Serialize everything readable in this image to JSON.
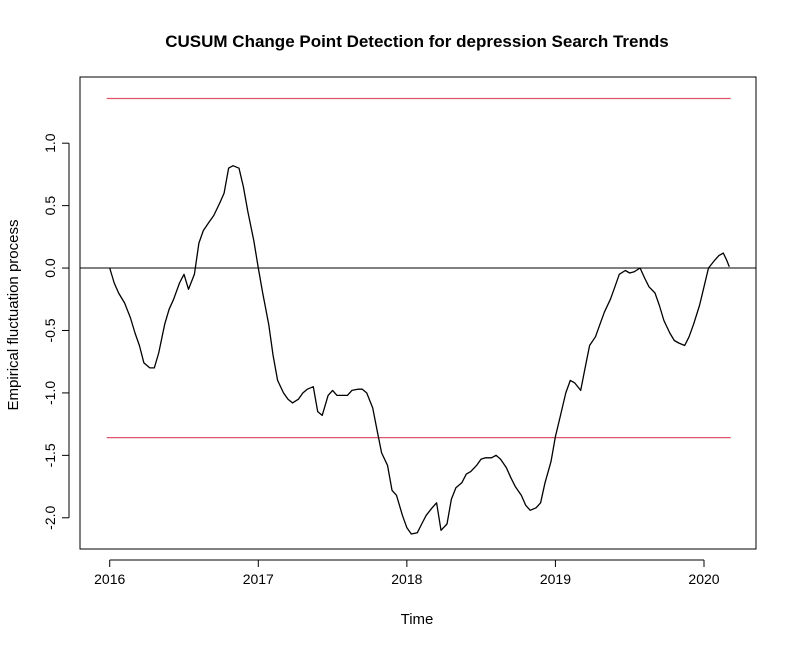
{
  "chart_data": {
    "type": "line",
    "title": "CUSUM Change Point Detection for depression Search Trends",
    "xlabel": "Time",
    "ylabel": "Empirical fluctuation process",
    "xlim": [
      2015.8,
      2020.35
    ],
    "ylim": [
      -2.25,
      1.53
    ],
    "x_ticks": [
      2016,
      2017,
      2018,
      2019,
      2020
    ],
    "x_tick_labels": [
      "2016",
      "2017",
      "2018",
      "2019",
      "2020"
    ],
    "y_ticks": [
      -2.0,
      -1.5,
      -1.0,
      -0.5,
      0.0,
      0.5,
      1.0
    ],
    "y_tick_labels": [
      "-2.0",
      "-1.5",
      "-1.0",
      "-0.5",
      "0.0",
      "0.5",
      "1.0"
    ],
    "grid": false,
    "boundaries": {
      "upper": 1.358,
      "lower": -1.358,
      "color": "#DF536B",
      "x_range": [
        2015.98,
        2020.18
      ]
    },
    "zero_line": {
      "y": 0.0,
      "color": "#000000"
    },
    "series": [
      {
        "color": "#000000",
        "x": [
          2016.0,
          2016.03,
          2016.06,
          2016.1,
          2016.14,
          2016.17,
          2016.2,
          2016.23,
          2016.27,
          2016.3,
          2016.33,
          2016.37,
          2016.4,
          2016.43,
          2016.47,
          2016.5,
          2016.53,
          2016.57,
          2016.6,
          2016.63,
          2016.67,
          2016.7,
          2016.74,
          2016.77,
          2016.8,
          2016.83,
          2016.87,
          2016.9,
          2016.93,
          2016.97,
          2017.0,
          2017.03,
          2017.07,
          2017.1,
          2017.13,
          2017.17,
          2017.2,
          2017.23,
          2017.27,
          2017.3,
          2017.33,
          2017.37,
          2017.4,
          2017.43,
          2017.47,
          2017.5,
          2017.53,
          2017.57,
          2017.6,
          2017.63,
          2017.67,
          2017.7,
          2017.73,
          2017.77,
          2017.8,
          2017.83,
          2017.87,
          2017.9,
          2017.93,
          2017.97,
          2018.0,
          2018.03,
          2018.07,
          2018.1,
          2018.13,
          2018.17,
          2018.2,
          2018.23,
          2018.27,
          2018.3,
          2018.33,
          2018.37,
          2018.4,
          2018.43,
          2018.47,
          2018.5,
          2018.53,
          2018.57,
          2018.6,
          2018.63,
          2018.67,
          2018.7,
          2018.73,
          2018.77,
          2018.8,
          2018.83,
          2018.87,
          2018.9,
          2018.93,
          2018.97,
          2019.0,
          2019.03,
          2019.07,
          2019.1,
          2019.13,
          2019.17,
          2019.2,
          2019.23,
          2019.27,
          2019.3,
          2019.33,
          2019.37,
          2019.4,
          2019.43,
          2019.47,
          2019.5,
          2019.53,
          2019.57,
          2019.6,
          2019.63,
          2019.67,
          2019.7,
          2019.73,
          2019.77,
          2019.8,
          2019.83,
          2019.87,
          2019.9,
          2019.93,
          2019.97,
          2020.0,
          2020.03,
          2020.07,
          2020.1,
          2020.13,
          2020.15,
          2020.17
        ],
        "y": [
          0.0,
          -0.12,
          -0.2,
          -0.28,
          -0.4,
          -0.52,
          -0.62,
          -0.76,
          -0.8,
          -0.8,
          -0.68,
          -0.45,
          -0.33,
          -0.25,
          -0.12,
          -0.05,
          -0.17,
          -0.05,
          0.2,
          0.3,
          0.37,
          0.42,
          0.52,
          0.6,
          0.8,
          0.82,
          0.8,
          0.65,
          0.45,
          0.22,
          0.0,
          -0.2,
          -0.45,
          -0.7,
          -0.9,
          -1.0,
          -1.05,
          -1.08,
          -1.05,
          -1.0,
          -0.97,
          -0.95,
          -1.15,
          -1.18,
          -1.02,
          -0.98,
          -1.02,
          -1.02,
          -1.02,
          -0.98,
          -0.97,
          -0.97,
          -1.0,
          -1.12,
          -1.3,
          -1.48,
          -1.58,
          -1.78,
          -1.82,
          -1.98,
          -2.08,
          -2.13,
          -2.12,
          -2.05,
          -1.98,
          -1.92,
          -1.88,
          -2.1,
          -2.05,
          -1.85,
          -1.76,
          -1.72,
          -1.65,
          -1.63,
          -1.58,
          -1.53,
          -1.52,
          -1.52,
          -1.5,
          -1.53,
          -1.6,
          -1.68,
          -1.75,
          -1.82,
          -1.9,
          -1.94,
          -1.92,
          -1.88,
          -1.72,
          -1.55,
          -1.35,
          -1.2,
          -1.0,
          -0.9,
          -0.92,
          -0.98,
          -0.8,
          -0.62,
          -0.55,
          -0.45,
          -0.35,
          -0.25,
          -0.15,
          -0.05,
          -0.02,
          -0.04,
          -0.03,
          0.0,
          -0.08,
          -0.15,
          -0.2,
          -0.3,
          -0.42,
          -0.52,
          -0.58,
          -0.6,
          -0.62,
          -0.55,
          -0.45,
          -0.3,
          -0.15,
          0.0,
          0.06,
          0.1,
          0.12,
          0.07,
          0.01
        ]
      }
    ]
  }
}
